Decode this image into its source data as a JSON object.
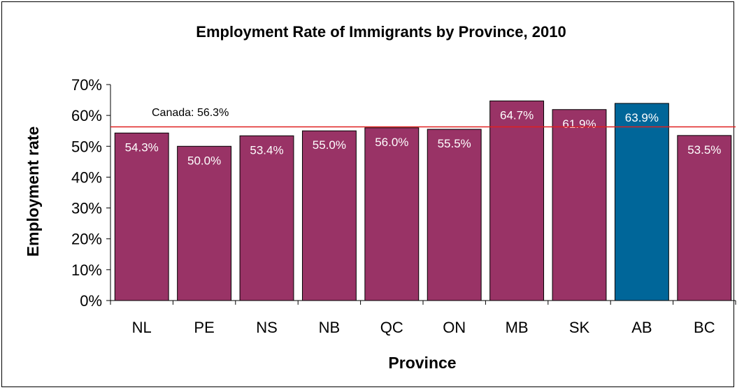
{
  "chart_data": {
    "type": "bar",
    "title": "Employment Rate of Immigrants by Province, 2010",
    "xlabel": "Province",
    "ylabel": "Employment rate",
    "ylim": [
      0,
      70
    ],
    "yticks": [
      "0%",
      "10%",
      "20%",
      "30%",
      "40%",
      "50%",
      "60%",
      "70%"
    ],
    "categories": [
      "NL",
      "PE",
      "NS",
      "NB",
      "QC",
      "ON",
      "MB",
      "SK",
      "AB",
      "BC"
    ],
    "values": [
      54.3,
      50.0,
      53.4,
      55.0,
      56.0,
      55.5,
      64.7,
      61.9,
      63.9,
      53.5
    ],
    "data_labels": [
      "54.3%",
      "50.0%",
      "53.4%",
      "55.0%",
      "56.0%",
      "55.5%",
      "64.7%",
      "61.9%",
      "63.9%",
      "53.5%"
    ],
    "bar_color": "#993366",
    "highlight_color": "#006699",
    "highlight_category": "AB",
    "reference_line": {
      "label": "Canada: 56.3%",
      "value": 56.3,
      "color": "#e02020"
    },
    "grid": false,
    "legend": "none"
  }
}
